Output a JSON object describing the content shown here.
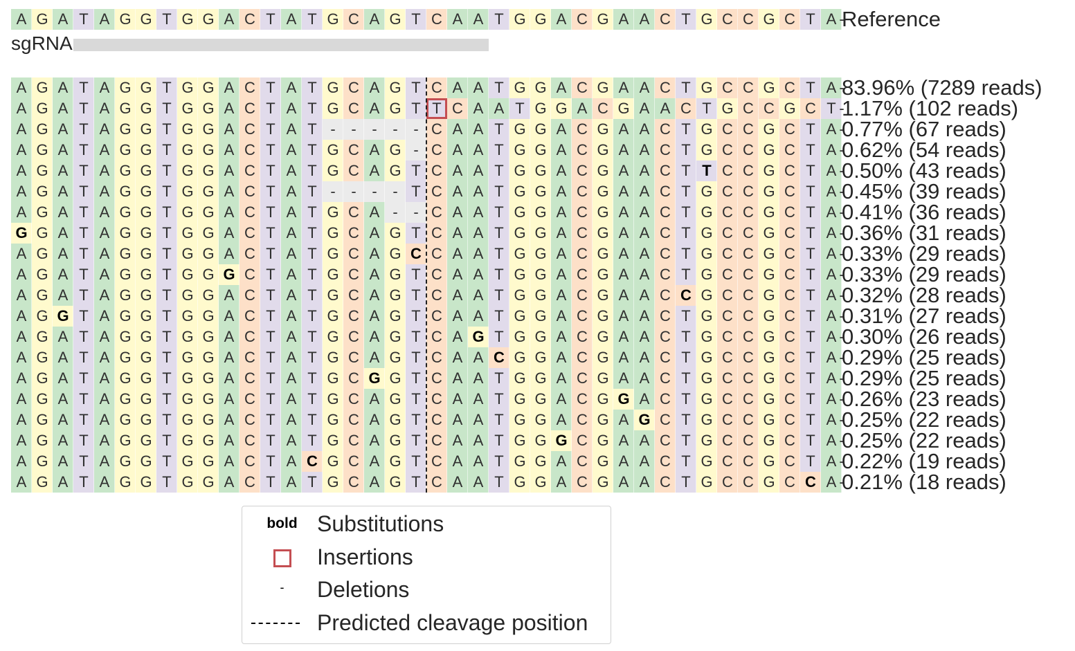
{
  "reference": {
    "sequence": "AGATAGGTGGACTATGCAGTCAATGGACGAACTGCCGCTA",
    "label": "Reference"
  },
  "sgrna": {
    "label": "sgRNA",
    "start_index": 3,
    "end_index": 22
  },
  "cleavage_after_index": 19,
  "colors": {
    "A": "#c8e6c9",
    "C": "#fde0c8",
    "G": "#fffacd",
    "T": "#e1dbeb",
    "-": "#ebebeb",
    "insertion_box": "#c44e52",
    "sgrna_bar": "#d9d9d9"
  },
  "alleles": [
    {
      "sequence": "AGATAGGTGGACTATGCAGTCAATGGACGAACTGCCGCTA",
      "label": "83.96% (7289 reads)",
      "bold": [],
      "insertion": null
    },
    {
      "sequence": "AGATAGGTGGACTATGCAGTTCAATGGACGAACTGCCGCT",
      "label": "1.17% (102 reads)",
      "bold": [],
      "insertion": 20
    },
    {
      "sequence": "AGATAGGTGGACTAT-----CAATGGACGAACTGCCGCTA",
      "label": "0.77% (67 reads)",
      "bold": [],
      "insertion": null
    },
    {
      "sequence": "AGATAGGTGGACTATGCAG-CAATGGACGAACTGCCGCTA",
      "label": "0.62% (54 reads)",
      "bold": [],
      "insertion": null
    },
    {
      "sequence": "AGATAGGTGGACTATGCAGTCAATGGACGAACTTCCGCTA",
      "label": "0.50% (43 reads)",
      "bold": [
        33
      ],
      "insertion": null
    },
    {
      "sequence": "AGATAGGTGGACTAT----TCAATGGACGAACTGCCGCTA",
      "label": "0.45% (39 reads)",
      "bold": [],
      "insertion": null
    },
    {
      "sequence": "AGATAGGTGGACTATGCA--CAATGGACGAACTGCCGCTA",
      "label": "0.41% (36 reads)",
      "bold": [],
      "insertion": null
    },
    {
      "sequence": "GGATAGGTGGACTATGCAGTCAATGGACGAACTGCCGCTA",
      "label": "0.36% (31 reads)",
      "bold": [
        0
      ],
      "insertion": null
    },
    {
      "sequence": "AGATAGGTGGACTATGCAGCCAATGGACGAACTGCCGCTA",
      "label": "0.33% (29 reads)",
      "bold": [
        19
      ],
      "insertion": null
    },
    {
      "sequence": "AGATAGGTGGGCTATGCAGTCAATGGACGAACTGCCGCTA",
      "label": "0.33% (29 reads)",
      "bold": [
        10
      ],
      "insertion": null
    },
    {
      "sequence": "AGATAGGTGGACTATGCAGTCAATGGACGAACCGCCGCTA",
      "label": "0.32% (28 reads)",
      "bold": [
        32
      ],
      "insertion": null
    },
    {
      "sequence": "AGGTAGGTGGACTATGCAGTCAATGGACGAACTGCCGCTA",
      "label": "0.31% (27 reads)",
      "bold": [
        2
      ],
      "insertion": null
    },
    {
      "sequence": "AGATAGGTGGACTATGCAGTCAGTGGACGAACTGCCGCTA",
      "label": "0.30% (26 reads)",
      "bold": [
        22
      ],
      "insertion": null
    },
    {
      "sequence": "AGATAGGTGGACTATGCAGTCAACGGACGAACTGCCGCTA",
      "label": "0.29% (25 reads)",
      "bold": [
        23
      ],
      "insertion": null
    },
    {
      "sequence": "AGATAGGTGGACTATGCGGTCAATGGACGAACTGCCGCTA",
      "label": "0.29% (25 reads)",
      "bold": [
        17
      ],
      "insertion": null
    },
    {
      "sequence": "AGATAGGTGGACTATGCAGTCAATGGACGGACTGCCGCTA",
      "label": "0.26% (23 reads)",
      "bold": [
        29
      ],
      "insertion": null
    },
    {
      "sequence": "AGATAGGTGGACTATGCAGTCAATGGACGAGCTGCCGCTA",
      "label": "0.25% (22 reads)",
      "bold": [
        30
      ],
      "insertion": null
    },
    {
      "sequence": "AGATAGGTGGACTATGCAGTCAATGGGCGAACTGCCGCTA",
      "label": "0.25% (22 reads)",
      "bold": [
        26
      ],
      "insertion": null
    },
    {
      "sequence": "AGATAGGTGGACTACGCAGTCAATGGACGAACTGCCGCTA",
      "label": "0.22% (19 reads)",
      "bold": [
        14
      ],
      "insertion": null
    },
    {
      "sequence": "AGATAGGTGGACTATGCAGTCAATGGACGAACTGCCGCCA",
      "label": "0.21% (18 reads)",
      "bold": [
        38
      ],
      "insertion": null
    }
  ],
  "legend": {
    "substitutions_symbol": "bold",
    "substitutions": "Substitutions",
    "insertions": "Insertions",
    "deletions_symbol": "-",
    "deletions": "Deletions",
    "cleavage": "Predicted cleavage position"
  }
}
